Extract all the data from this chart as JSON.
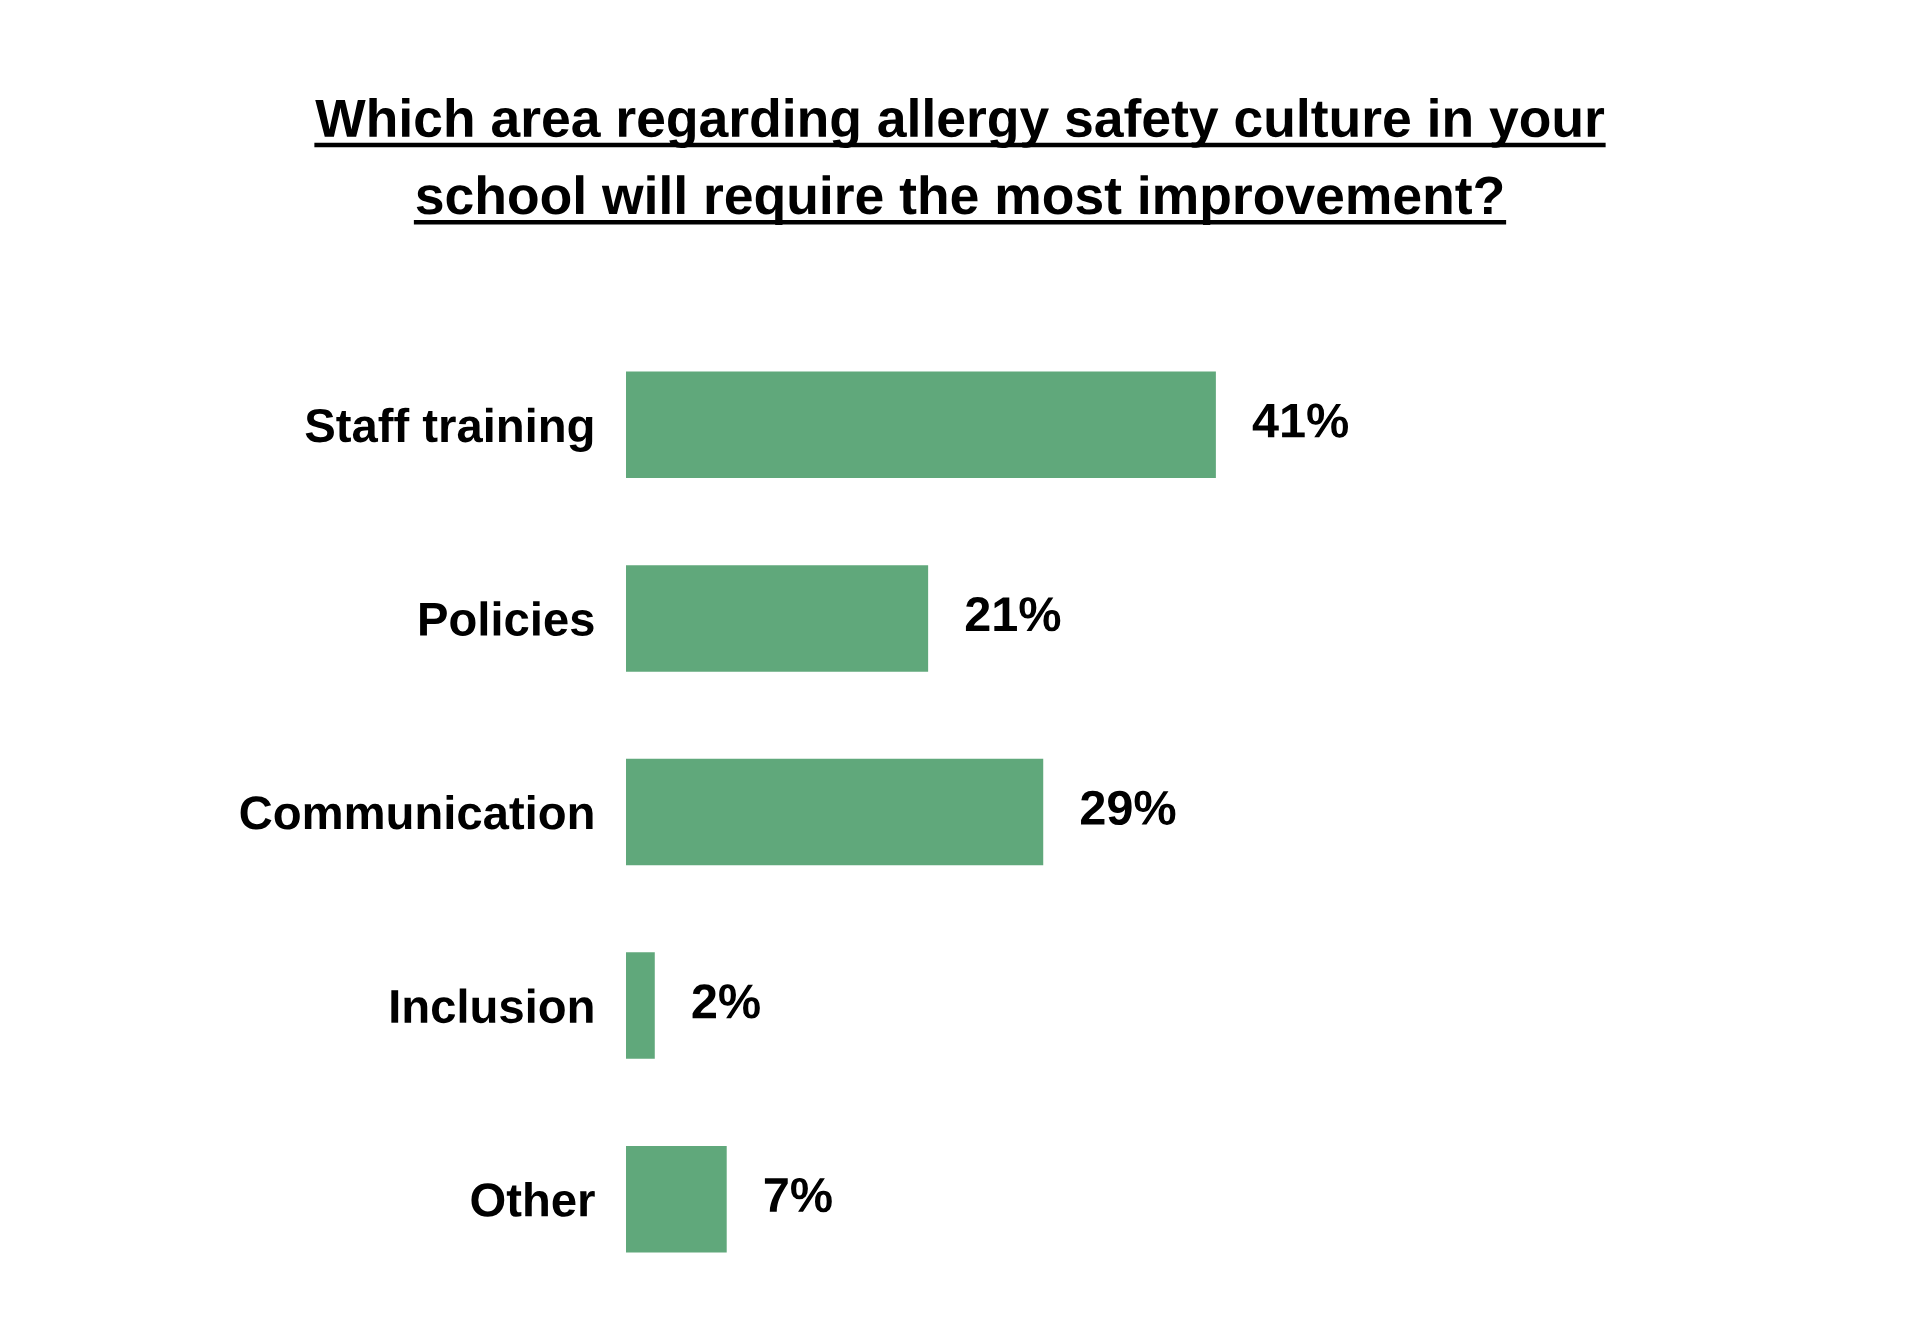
{
  "chart_data": {
    "type": "bar",
    "orientation": "horizontal",
    "title": "Which area regarding allergy safety culture in your\nschool will require the most improvement?",
    "categories": [
      "Staff training",
      "Policies",
      "Communication",
      "Inclusion",
      "Other"
    ],
    "values": [
      41,
      21,
      29,
      2,
      7
    ],
    "value_labels": [
      "41%",
      "21%",
      "29%",
      "2%",
      "7%"
    ],
    "color": "#60a87b",
    "tick_labels": "y"
  }
}
